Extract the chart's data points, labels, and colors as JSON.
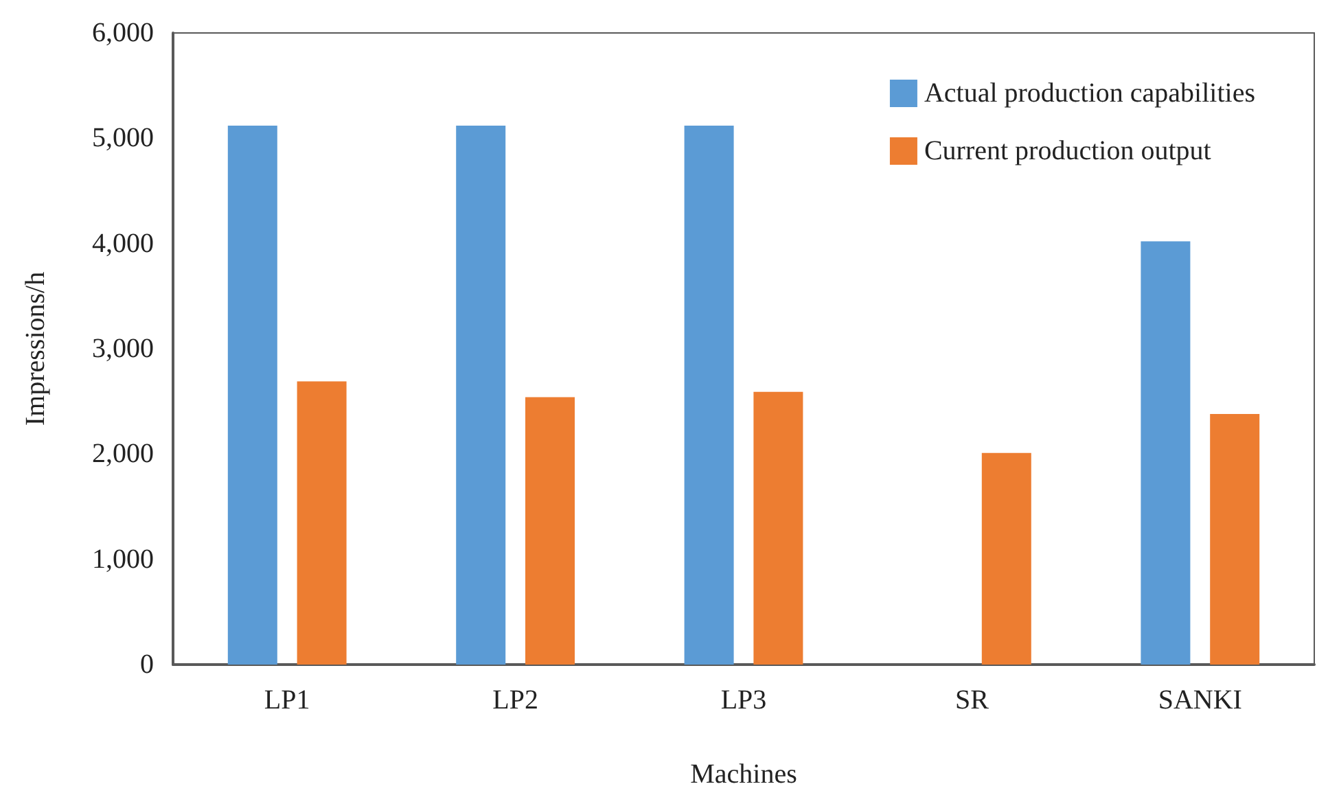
{
  "chart_data": {
    "type": "bar",
    "xlabel": "Machines",
    "ylabel": "Impressions/h",
    "categories": [
      "LP1",
      "LP2",
      "LP3",
      "SR",
      "SANKI"
    ],
    "series": [
      {
        "name": "Actual production capabilities",
        "color": "#5b9bd5",
        "values": [
          5120,
          5120,
          5120,
          null,
          4020
        ]
      },
      {
        "name": "Current production output",
        "color": "#ed7d31",
        "values": [
          2690,
          2540,
          2590,
          2010,
          2380
        ]
      }
    ],
    "ylim": [
      0,
      6000
    ],
    "yticks": [
      {
        "value": 0,
        "label": "0"
      },
      {
        "value": 1000,
        "label": "1,000"
      },
      {
        "value": 2000,
        "label": "2,000"
      },
      {
        "value": 3000,
        "label": "3,000"
      },
      {
        "value": 4000,
        "label": "4,000"
      },
      {
        "value": 5000,
        "label": "5,000"
      },
      {
        "value": 6000,
        "label": "6,000"
      }
    ],
    "grid": false,
    "legend": "top right"
  }
}
